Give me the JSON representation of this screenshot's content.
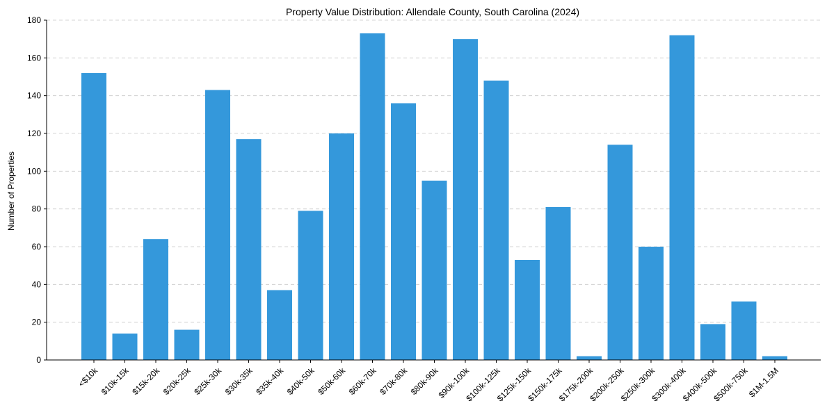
{
  "chart_data": {
    "type": "bar",
    "title": "Property Value Distribution: Allendale County, South Carolina (2024)",
    "xlabel": "",
    "ylabel": "Number of Properties",
    "ylim": [
      0,
      180
    ],
    "yticks": [
      0,
      20,
      40,
      60,
      80,
      100,
      120,
      140,
      160,
      180
    ],
    "grid": "horizontal-dashed",
    "bar_color": "#3498db",
    "categories": [
      "<$10k",
      "$10k-15k",
      "$15k-20k",
      "$20k-25k",
      "$25k-30k",
      "$30k-35k",
      "$35k-40k",
      "$40k-50k",
      "$50k-60k",
      "$60k-70k",
      "$70k-80k",
      "$80k-90k",
      "$90k-100k",
      "$100k-125k",
      "$125k-150k",
      "$150k-175k",
      "$175k-200k",
      "$200k-250k",
      "$250k-300k",
      "$300k-400k",
      "$400k-500k",
      "$500k-750k",
      "$1M-1.5M"
    ],
    "values": [
      152,
      14,
      64,
      16,
      143,
      117,
      37,
      79,
      120,
      173,
      136,
      95,
      170,
      148,
      53,
      81,
      2,
      114,
      60,
      172,
      19,
      31,
      2
    ]
  }
}
